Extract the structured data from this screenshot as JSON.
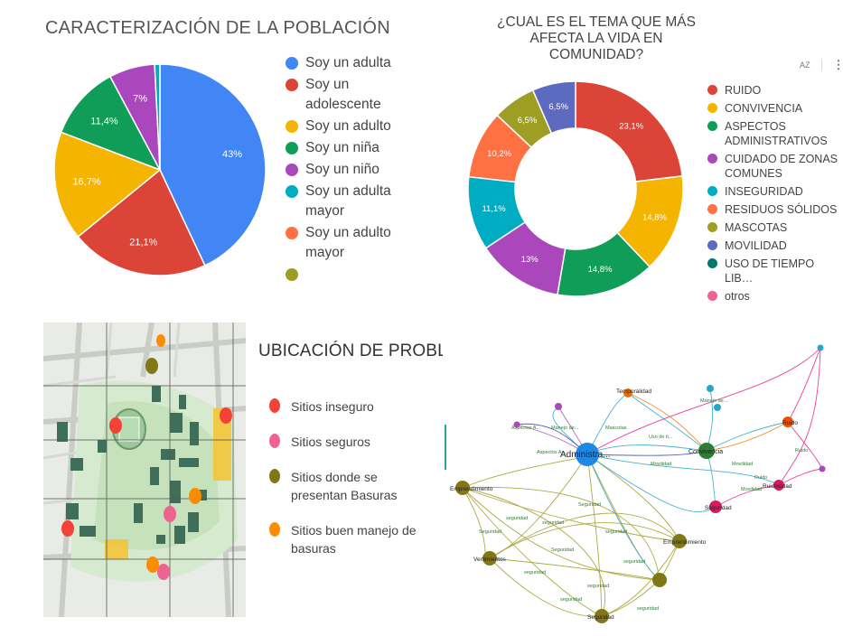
{
  "panel1": {
    "title": "CARACTERIZACIÓN DE LA POBLACIÓN",
    "legend": [
      {
        "label": "Soy un adulta",
        "color": "#4285f4"
      },
      {
        "label": "Soy un adolescente",
        "color": "#db4437"
      },
      {
        "label": "Soy un adulto",
        "color": "#f4b400"
      },
      {
        "label": "Soy un niña",
        "color": "#0f9d58"
      },
      {
        "label": "Soy un niño",
        "color": "#ab47bc"
      },
      {
        "label": "Soy un adulta mayor",
        "color": "#00acc1"
      },
      {
        "label": "Soy un adulto mayor",
        "color": "#ff7043"
      },
      {
        "label": "",
        "color": "#9e9d24"
      }
    ]
  },
  "panel2": {
    "title": "¿CUAL ES EL TEMA QUE MÁS AFECTA  LA VIDA EN COMUNIDAD?",
    "toolbar": {
      "sort_icon": "AZ",
      "menu_icon": "⋮"
    },
    "legend": [
      {
        "label": "RUIDO",
        "color": "#db4437"
      },
      {
        "label": "CONVIVENCIA",
        "color": "#f4b400"
      },
      {
        "label": "ASPECTOS ADMINISTRATIVOS",
        "color": "#0f9d58"
      },
      {
        "label": "CUIDADO DE ZONAS COMUNES",
        "color": "#ab47bc"
      },
      {
        "label": "INSEGURIDAD",
        "color": "#00acc1"
      },
      {
        "label": "RESIDUOS SÓLIDOS",
        "color": "#ff7043"
      },
      {
        "label": "MASCOTAS",
        "color": "#9e9d24"
      },
      {
        "label": "MOVILIDAD",
        "color": "#5c6bc0"
      },
      {
        "label": "USO DE TIEMPO LIB…",
        "color": "#00796b"
      },
      {
        "label": "otros",
        "color": "#f06292"
      }
    ]
  },
  "panel3": {
    "title": "UBICACIÓN DE PROBLEMAS",
    "legend": [
      {
        "label": "Sitios inseguro",
        "color": "#f44336"
      },
      {
        "label": "Sitios seguros",
        "color": "#f06292"
      },
      {
        "label": "Sitios donde se presentan Basuras",
        "color": "#827717"
      },
      {
        "label": "Sitios buen manejo de basuras",
        "color": "#fb8c00"
      }
    ]
  },
  "network": {
    "node_labels": {
      "admin": "Administra...",
      "conv": "Convivencia",
      "emp": "Emprendimiento",
      "vert": "Vertimientos",
      "seg": "Seguridad",
      "ruido": "Ruido",
      "ruidosidad": "Ruidosidad",
      "temp": "Temporalidad"
    },
    "edge_labels": {
      "seguridad": "seguridad",
      "Seguridad": "Seguridad",
      "Movilidad": "Movilidad",
      "Mascotas": "Mascotas",
      "Ruido": "Ruido",
      "aspectos": "Aspectos A...",
      "manejo": "Manejo de...",
      "uso": "Uso de ti..."
    }
  },
  "chart_data": [
    {
      "type": "pie",
      "title": "CARACTERIZACIÓN DE LA POBLACIÓN",
      "categories": [
        "Soy un adulta",
        "Soy un adolescente",
        "Soy un adulto",
        "Soy un niña",
        "Soy un niño",
        "Soy un adulta mayor",
        "Soy un adulto mayor",
        ""
      ],
      "values": [
        43,
        21.1,
        16.7,
        11.4,
        7,
        0.8,
        0,
        0
      ],
      "labels": [
        "43%",
        "21,1%",
        "16,7%",
        "11,4%",
        "7%",
        "",
        "",
        ""
      ],
      "colors": [
        "#4285f4",
        "#db4437",
        "#f4b400",
        "#0f9d58",
        "#ab47bc",
        "#00acc1",
        "#ff7043",
        "#9e9d24"
      ],
      "legend": "right"
    },
    {
      "type": "pie",
      "subtype": "donut",
      "title": "¿CUAL ES EL TEMA QUE MÁS AFECTA  LA VIDA EN COMUNIDAD?",
      "categories": [
        "RUIDO",
        "CONVIVENCIA",
        "ASPECTOS ADMINISTRATIVOS",
        "CUIDADO DE ZONAS COMUNES",
        "INSEGURIDAD",
        "RESIDUOS SÓLIDOS",
        "MASCOTAS",
        "MOVILIDAD",
        "USO DE TIEMPO LIB…",
        "otros"
      ],
      "values": [
        23.1,
        14.8,
        14.8,
        13,
        11.1,
        10.2,
        6.5,
        6.5,
        0,
        0
      ],
      "labels": [
        "23,1%",
        "14,8%",
        "14,8%",
        "13%",
        "11,1%",
        "10,2%",
        "6,5%",
        "6,5%",
        "",
        ""
      ],
      "colors": [
        "#db4437",
        "#f4b400",
        "#0f9d58",
        "#ab47bc",
        "#00acc1",
        "#ff7043",
        "#9e9d24",
        "#5c6bc0",
        "#00796b",
        "#f06292"
      ],
      "legend": "right"
    }
  ]
}
